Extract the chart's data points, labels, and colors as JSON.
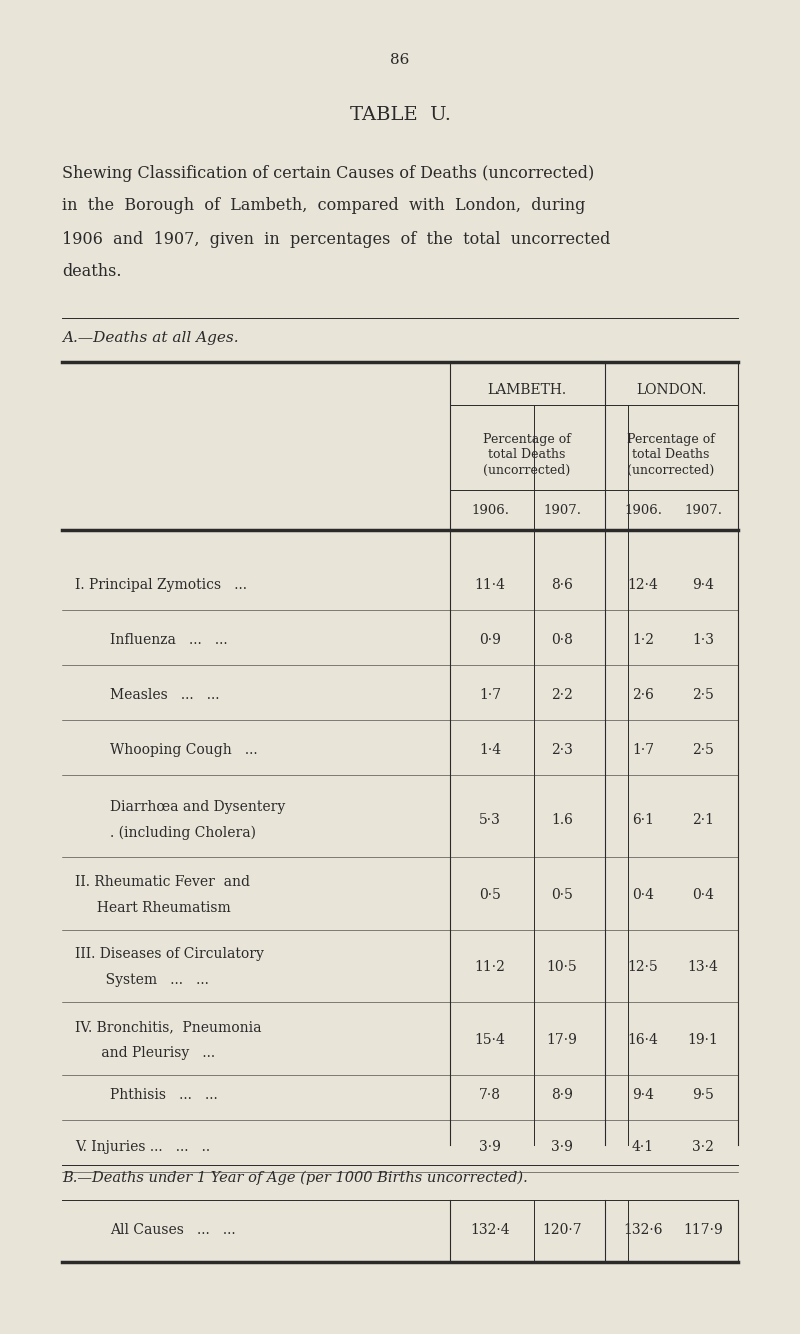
{
  "page_number": "86",
  "table_title": "TABLE  U.",
  "description_lines": [
    "Shewing Classification of certain Causes of Deaths (uncorrected)",
    "in  the  Borough  of  Lambeth,  compared  with  London,  during",
    "1906  and  1907,  given  in  percentages  of  the  total  uncorrected",
    "deaths."
  ],
  "section_a_label": "A.—Deaths at all Ages.",
  "col_header_1": "LAMBETH.",
  "col_header_2": "LONDON.",
  "col_subheader": "Percentage of\ntotal Deaths\n(uncorrected)",
  "col_years": [
    "1906.",
    "1907.",
    "1906.",
    "1907."
  ],
  "rows": [
    {
      "label_lines": [
        "I. Pʀɪɴᴄɪʀᴀʟ  Zʏᴍᴏᴛɪᴄs   ..."
      ],
      "label_plain": [
        "I. Principal Zymotics   ..."
      ],
      "indent": 0,
      "smallcaps": true,
      "values": [
        "11·4",
        "8·6",
        "12·4",
        "9·4"
      ]
    },
    {
      "label_lines": [
        "Influenza   ...   ..."
      ],
      "label_plain": [
        "Influenza   ...   ..."
      ],
      "indent": 1,
      "smallcaps": false,
      "values": [
        "0·9",
        "0·8",
        "1·2",
        "1·3"
      ]
    },
    {
      "label_lines": [
        "Measles   ...   ..."
      ],
      "label_plain": [
        "Measles   ...   ..."
      ],
      "indent": 1,
      "smallcaps": false,
      "values": [
        "1·7",
        "2·2",
        "2·6",
        "2·5"
      ]
    },
    {
      "label_lines": [
        "Whooping Cough   ..."
      ],
      "label_plain": [
        "Whooping Cough   ..."
      ],
      "indent": 1,
      "smallcaps": false,
      "values": [
        "1·4",
        "2·3",
        "1·7",
        "2·5"
      ]
    },
    {
      "label_lines": [
        "Diarrhœa and Dysentery",
        ". (including Cholera)"
      ],
      "label_plain": [
        "Diarrhœa and Dysentery",
        ". (including Cholera)"
      ],
      "indent": 1,
      "smallcaps": false,
      "values": [
        "5·3",
        "1.6",
        "6·1",
        "2·1"
      ]
    },
    {
      "label_lines": [
        "II. Rheumatic Fever  and",
        "     Heart Rheumatism"
      ],
      "label_plain": [
        "II. Rheumatic Fever  and",
        "     Heart Rheumatism"
      ],
      "indent": 0,
      "smallcaps": true,
      "values": [
        "0·5",
        "0·5",
        "0·4",
        "0·4"
      ]
    },
    {
      "label_lines": [
        "III. Diseases of Circulatory",
        "       System   ...   ..."
      ],
      "label_plain": [
        "III. Diseases of Circulatory",
        "       System   ...   ..."
      ],
      "indent": 0,
      "smallcaps": true,
      "values": [
        "11·2",
        "10·5",
        "12·5",
        "13·4"
      ]
    },
    {
      "label_lines": [
        "IV. Bronchitis,  Pneumonia",
        "      and Pleurisy   ..."
      ],
      "label_plain": [
        "IV. Bronchitis,  Pneumonia",
        "      and Pleurisy   ..."
      ],
      "indent": 0,
      "smallcaps": true,
      "values": [
        "15·4",
        "17·9",
        "16·4",
        "19·1"
      ]
    },
    {
      "label_lines": [
        "Phthisis   ...   ..."
      ],
      "label_plain": [
        "Phthisis   ...   ..."
      ],
      "indent": 1,
      "smallcaps": false,
      "values": [
        "7·8",
        "8·9",
        "9·4",
        "9·5"
      ]
    },
    {
      "label_lines": [
        "V. Injuries ...   ...   .."
      ],
      "label_plain": [
        "V. Injuries ...   ...   .."
      ],
      "indent": 0,
      "smallcaps": true,
      "values": [
        "3·9",
        "3·9",
        "4·1",
        "3·2"
      ]
    }
  ],
  "section_b_label": "B.—Deaths under 1 Year of Age (per 1000 Births uncorrected).",
  "section_b_row": {
    "label": "All Causes   ...   ...",
    "smallcaps": true,
    "values": [
      "132·4",
      "120·7",
      "132·6",
      "117·9"
    ]
  },
  "bg_color": "#e8e4d8",
  "text_color": "#2a2a2a",
  "line_color": "#2a2a2a"
}
